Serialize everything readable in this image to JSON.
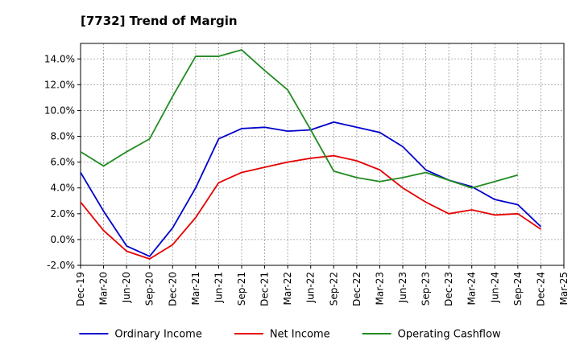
{
  "chart_data": {
    "type": "line",
    "title": "[7732]  Trend of Margin",
    "xlabel": "",
    "ylabel": "",
    "x": [
      "Dec-19",
      "Mar-20",
      "Jun-20",
      "Sep-20",
      "Dec-20",
      "Mar-21",
      "Jun-21",
      "Sep-21",
      "Dec-21",
      "Mar-22",
      "Jun-22",
      "Sep-22",
      "Dec-22",
      "Mar-23",
      "Jun-23",
      "Sep-23",
      "Dec-23",
      "Mar-24",
      "Jun-24",
      "Sep-24",
      "Dec-24",
      "Mar-25"
    ],
    "yticks": [
      "-2.0%",
      "0.0%",
      "2.0%",
      "4.0%",
      "6.0%",
      "8.0%",
      "10.0%",
      "12.0%",
      "14.0%"
    ],
    "ytick_values": [
      -2,
      0,
      2,
      4,
      6,
      8,
      10,
      12,
      14
    ],
    "ylim": [
      -2.0,
      15.2
    ],
    "grid": true,
    "legend_position": "bottom",
    "series": [
      {
        "name": "Ordinary Income",
        "color": "#0000cc",
        "values": [
          5.2,
          2.2,
          -0.5,
          -1.3,
          0.9,
          4.0,
          7.8,
          8.6,
          8.7,
          8.4,
          8.5,
          9.1,
          8.7,
          8.3,
          7.2,
          5.4,
          4.6,
          4.1,
          3.1,
          2.7,
          1.0,
          null
        ]
      },
      {
        "name": "Net Income",
        "color": "#e60000",
        "values": [
          2.9,
          0.7,
          -0.9,
          -1.5,
          -0.4,
          1.7,
          4.4,
          5.2,
          5.6,
          6.0,
          6.3,
          6.5,
          6.1,
          5.4,
          4.0,
          2.9,
          2.0,
          2.3,
          1.9,
          2.0,
          0.8,
          null
        ]
      },
      {
        "name": "Operating Cashflow",
        "color": "#228b22",
        "values": [
          6.8,
          5.7,
          6.8,
          7.8,
          11.1,
          14.2,
          14.2,
          14.7,
          13.1,
          11.6,
          8.5,
          5.3,
          4.8,
          4.5,
          4.8,
          5.2,
          4.6,
          4.0,
          4.5,
          5.0,
          null,
          null
        ]
      }
    ]
  }
}
